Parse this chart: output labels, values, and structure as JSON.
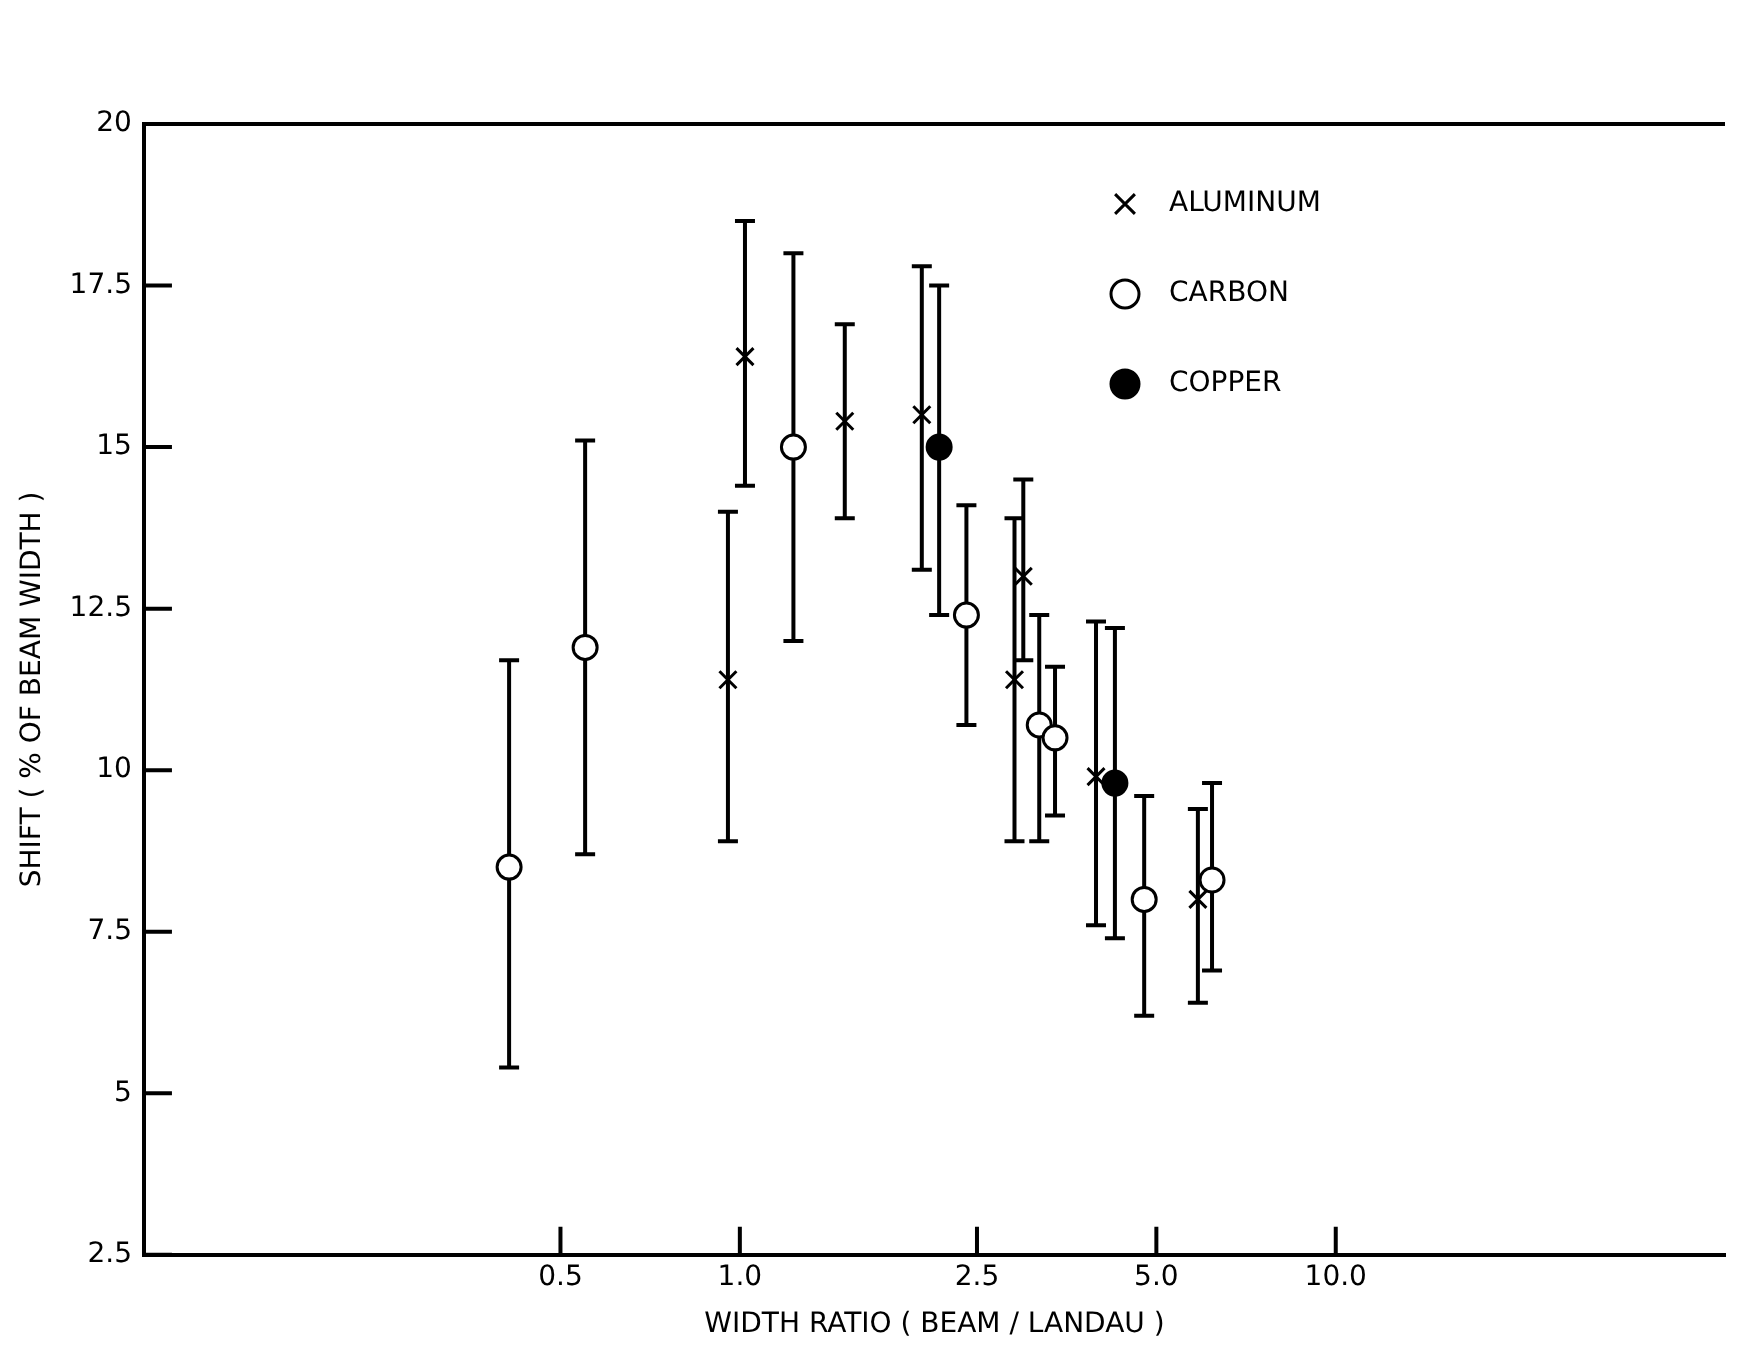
{
  "chart_data": {
    "type": "scatter",
    "xlabel": "WIDTH RATIO ( BEAM / LANDAU )",
    "ylabel": "SHIFT ( % OF BEAM WIDTH )",
    "log": "x",
    "xlim": [
      0.1,
      45
    ],
    "xticks": [
      0.5,
      {
        "value": 1,
        "label": "1.0"
      },
      2.5,
      {
        "value": 5,
        "label": "5.0"
      },
      {
        "value": 10,
        "label": "10.0"
      }
    ],
    "ylim": [
      2.5,
      20
    ],
    "yticks": [
      2.5,
      5,
      7.5,
      10,
      12.5,
      15,
      17.5,
      20
    ],
    "grid": false,
    "legend": "top right",
    "series": [
      {
        "name": "ALUMINUM",
        "color": "#000000",
        "marker": "cross",
        "x": [
          0.955,
          1.02,
          1.5,
          2.02,
          2.89,
          2.99,
          3.96,
          5.87
        ],
        "values": [
          11.4,
          16.4,
          15.4,
          15.5,
          11.4,
          13.0,
          9.9,
          8.0
        ],
        "errors": [
          [
            8.9,
            14.0
          ],
          [
            14.4,
            18.5
          ],
          [
            13.9,
            16.9
          ],
          [
            13.1,
            17.8
          ],
          [
            8.9,
            13.9
          ],
          [
            11.7,
            14.5
          ],
          [
            7.6,
            12.3
          ],
          [
            6.4,
            9.4
          ]
        ]
      },
      {
        "name": "CARBON",
        "color": "#ffffff",
        "marker": "circle",
        "x": [
          0.41,
          0.55,
          1.23,
          2.4,
          3.18,
          3.38,
          4.77,
          6.2
        ],
        "values": [
          8.5,
          11.9,
          15.0,
          12.4,
          10.7,
          10.5,
          8.0,
          8.3
        ],
        "errors": [
          [
            5.4,
            11.7
          ],
          [
            8.7,
            15.1
          ],
          [
            12.0,
            18.0
          ],
          [
            10.7,
            14.1
          ],
          [
            8.9,
            12.4
          ],
          [
            9.3,
            11.6
          ],
          [
            6.2,
            9.6
          ],
          [
            6.9,
            9.8
          ]
        ]
      },
      {
        "name": "COPPER",
        "color": "#000000",
        "marker": "circle",
        "x": [
          2.16,
          4.26
        ],
        "values": [
          15.0,
          9.8
        ],
        "errors": [
          [
            12.4,
            17.5
          ],
          [
            7.4,
            12.2
          ]
        ]
      }
    ]
  }
}
